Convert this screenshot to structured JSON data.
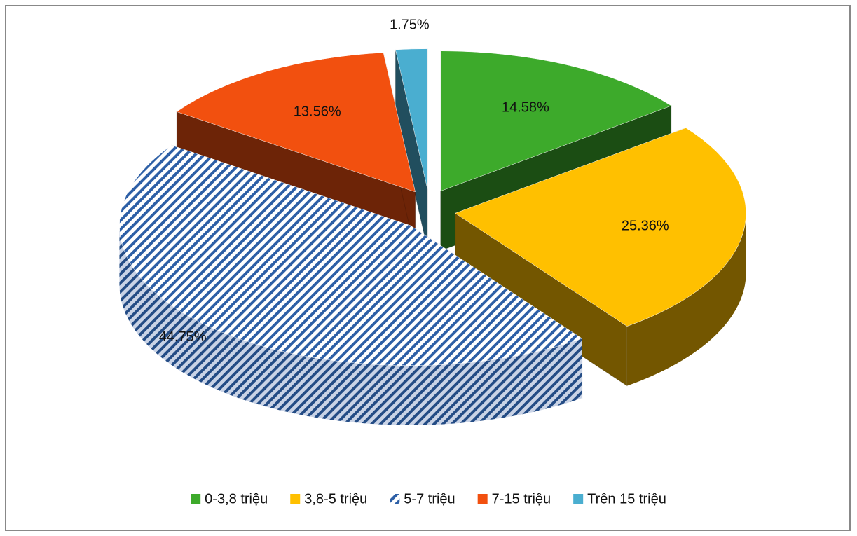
{
  "chart_data": {
    "type": "pie3d",
    "categories": [
      "0-3,8 triệu",
      "3,8-5 triệu",
      "5-7 triệu",
      "7-15 triệu",
      "Trên 15 triệu"
    ],
    "values": [
      14.58,
      25.36,
      44.75,
      13.56,
      1.75
    ],
    "value_labels": [
      "14.58%",
      "25.36%",
      "44.75%",
      "13.56%",
      "1.75%"
    ],
    "colors": [
      "#3daa2b",
      "#ffc000",
      "#2d5fa6",
      "#f2500f",
      "#4aaed0"
    ],
    "patterns": [
      "solid",
      "solid",
      "diagonal",
      "solid",
      "solid"
    ],
    "legend": "bottom"
  }
}
